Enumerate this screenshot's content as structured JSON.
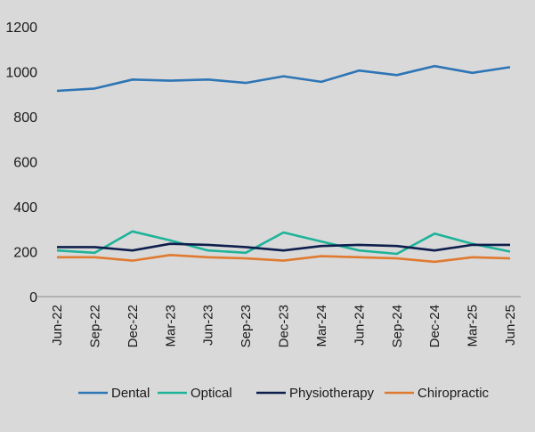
{
  "chart_data": {
    "type": "line",
    "categories": [
      "Jun-22",
      "Sep-22",
      "Dec-22",
      "Mar-23",
      "Jun-23",
      "Sep-23",
      "Dec-23",
      "Mar-24",
      "Jun-24",
      "Sep-24",
      "Dec-24",
      "Mar-25",
      "Jun-25"
    ],
    "ylim": [
      0,
      1200
    ],
    "yticks": [
      "0",
      "200",
      "400",
      "600",
      "800",
      "1000",
      "1200"
    ],
    "grid": false,
    "legend_position": "bottom",
    "series": [
      {
        "name": "Dental",
        "color": "#2e75b6",
        "values": [
          915,
          925,
          965,
          960,
          965,
          950,
          980,
          955,
          1005,
          985,
          1025,
          995,
          1020
        ]
      },
      {
        "name": "Optical",
        "color": "#1fb39a",
        "values": [
          205,
          195,
          290,
          250,
          205,
          195,
          285,
          245,
          205,
          190,
          280,
          235,
          200
        ]
      },
      {
        "name": "Physiotherapy",
        "color": "#0f1f4d",
        "values": [
          220,
          220,
          205,
          235,
          230,
          220,
          205,
          225,
          230,
          225,
          205,
          230,
          230
        ]
      },
      {
        "name": "Chiropractic",
        "color": "#e07a30",
        "values": [
          175,
          175,
          160,
          185,
          175,
          170,
          160,
          180,
          175,
          170,
          155,
          175,
          170
        ]
      }
    ]
  }
}
